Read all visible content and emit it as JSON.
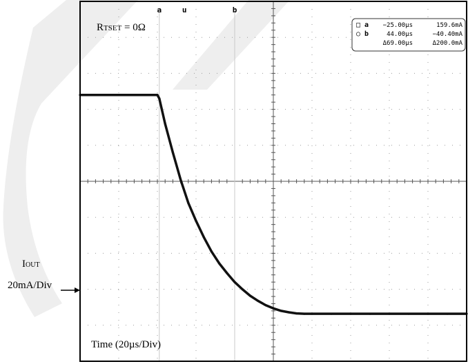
{
  "chart_data": {
    "type": "line",
    "title": "",
    "annotation_rtset": {
      "main": "R",
      "sub": "TSET",
      "rest": " = 0Ω"
    },
    "ylabel": {
      "main": "I",
      "sub": "OUT",
      "line2": "20mA/Div"
    },
    "xlabel": "Time (20µs/Div)",
    "x_divisions": 10,
    "y_divisions": 10,
    "xlim": [
      0,
      10
    ],
    "ylim": [
      0,
      10
    ],
    "grid": true,
    "series": [
      {
        "x": [
          0,
          2.0,
          2.05,
          2.2,
          2.4,
          2.6,
          2.8,
          3.0,
          3.2,
          3.4,
          3.6,
          3.8,
          4.0,
          4.2,
          4.4,
          4.6,
          4.8,
          5.0,
          5.2,
          5.4,
          5.6,
          5.8,
          6.0,
          6.5,
          7.0,
          7.5,
          8.0,
          8.5,
          9.0,
          9.5,
          10.0
        ],
        "y": [
          7.4,
          7.4,
          7.3,
          6.6,
          5.8,
          5.05,
          4.4,
          3.9,
          3.45,
          3.05,
          2.72,
          2.45,
          2.2,
          2.0,
          1.82,
          1.68,
          1.56,
          1.47,
          1.4,
          1.36,
          1.33,
          1.32,
          1.32,
          1.32,
          1.32,
          1.32,
          1.32,
          1.32,
          1.32,
          1.32,
          1.32
        ]
      }
    ],
    "cursor_markers": [
      {
        "label": "a",
        "x": 2.05
      },
      {
        "label": "u",
        "x": 2.7
      },
      {
        "label": "b",
        "x": 4.0
      }
    ],
    "readout": {
      "rows": [
        {
          "box": "□",
          "label": "a",
          "time": "−25.00µs",
          "value": "159.6mA"
        },
        {
          "box": "○",
          "label": "b",
          "time": "44.00µs",
          "value": "−40.40mA"
        },
        {
          "box": "",
          "label": "",
          "time": "Δ69.00µs",
          "value": "Δ200.0mA"
        }
      ]
    },
    "colors": {
      "trace": "#111111",
      "grid": "#9a9a9a",
      "cursor": "#c8c8c8",
      "frame": "#000000",
      "watermark": "#eeeeee"
    }
  }
}
